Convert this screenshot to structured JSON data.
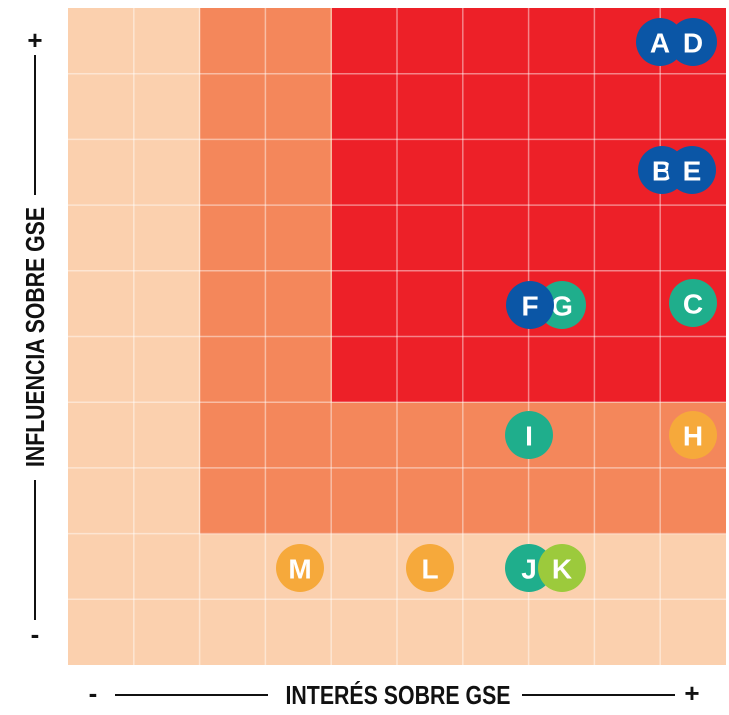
{
  "axes": {
    "y": {
      "label": "INFLUENCIA SOBRE GSE",
      "high": "+",
      "low": "-"
    },
    "x": {
      "label": "INTERÉS SOBRE GSE",
      "low": "-",
      "high": "+"
    }
  },
  "nodes": [
    {
      "label": "A",
      "color": "#0b56a6"
    },
    {
      "label": "D",
      "color": "#0b56a6"
    },
    {
      "label": "B",
      "color": "#0b56a6"
    },
    {
      "label": "E",
      "color": "#0b56a6"
    },
    {
      "label": "G",
      "color": "#1fae8c"
    },
    {
      "label": "F",
      "color": "#0b56a6"
    },
    {
      "label": "C",
      "color": "#1fae8c"
    },
    {
      "label": "I",
      "color": "#1fae8c"
    },
    {
      "label": "H",
      "color": "#f6a93b"
    },
    {
      "label": "M",
      "color": "#f6a93b"
    },
    {
      "label": "L",
      "color": "#f6a93b"
    },
    {
      "label": "J",
      "color": "#1fae8c"
    },
    {
      "label": "K",
      "color": "#9cca3c"
    }
  ]
}
